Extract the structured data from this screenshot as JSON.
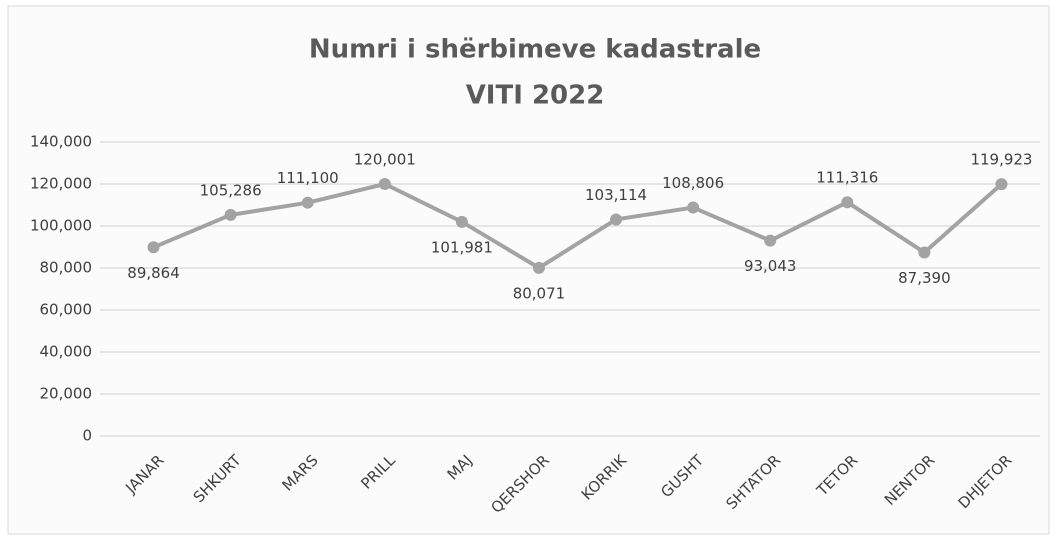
{
  "chart_data": {
    "type": "line",
    "title": "Numri i shërbimeve kadastrale",
    "subtitle": "VITI 2022",
    "categories": [
      "JANAR",
      "SHKURT",
      "MARS",
      "PRILL",
      "MAJ",
      "QERSHOR",
      "KORRIK",
      "GUSHT",
      "SHTATOR",
      "TETOR",
      "NENTOR",
      "DHJETOR"
    ],
    "values": [
      89864,
      105286,
      111100,
      120001,
      101981,
      80071,
      103114,
      108806,
      93043,
      111316,
      87390,
      119923
    ],
    "value_labels": [
      "89,864",
      "105,286",
      "111,100",
      "120,001",
      "101,981",
      "80,071",
      "103,114",
      "108,806",
      "93,043",
      "111,316",
      "87,390",
      "119,923"
    ],
    "color": "#a3a3a3",
    "ylim": [
      0,
      140000
    ],
    "yticks": [
      0,
      {
        "value": 20000,
        "label": "20,000"
      },
      {
        "value": 40000,
        "label": "40,000"
      },
      {
        "value": 60000,
        "label": "60,000"
      },
      {
        "value": 80000,
        "label": "80,000"
      },
      {
        "value": 100000,
        "label": "100,000"
      },
      {
        "value": 120000,
        "label": "120,000"
      },
      {
        "value": 140000,
        "label": "140,000"
      }
    ],
    "grid": true
  }
}
